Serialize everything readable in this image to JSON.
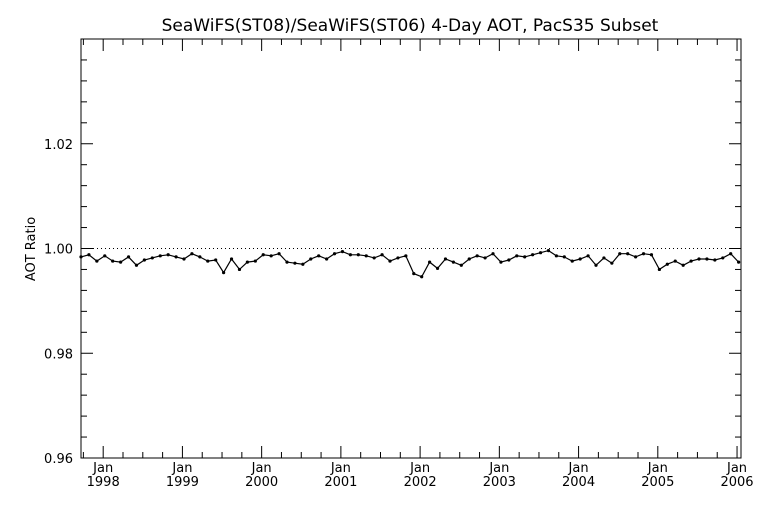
{
  "chart_data": {
    "type": "line",
    "title": "SeaWiFS(ST08)/SeaWiFS(ST06) 4-Day AOT, PacS35 Subset",
    "xlabel": "",
    "ylabel": "AOT Ratio",
    "xlim": [
      1997.72,
      2006.05
    ],
    "ylim": [
      0.96,
      1.04
    ],
    "yticks": [
      0.96,
      0.98,
      1.0,
      1.02
    ],
    "ytick_labels": [
      "0.96",
      "0.98",
      "1.00",
      "1.02"
    ],
    "xticks": [
      1998,
      1999,
      2000,
      2001,
      2002,
      2003,
      2004,
      2005,
      2006
    ],
    "xtick_labels_month": [
      "Jan",
      "Jan",
      "Jan",
      "Jan",
      "Jan",
      "Jan",
      "Jan",
      "Jan",
      "Jan"
    ],
    "xtick_labels_year": [
      "1998",
      "1999",
      "2000",
      "2001",
      "2002",
      "2003",
      "2004",
      "2005",
      "2006"
    ],
    "reference_line": 1.0,
    "grid": false,
    "series": [
      {
        "x": [
          1997.72,
          1997.82,
          1997.92,
          1998.02,
          1998.12,
          1998.22,
          1998.32,
          1998.42,
          1998.52,
          1998.62,
          1998.72,
          1998.82,
          1998.92,
          1999.02,
          1999.12,
          1999.22,
          1999.32,
          1999.42,
          1999.52,
          1999.62,
          1999.72,
          1999.82,
          1999.92,
          2000.02,
          2000.12,
          2000.22,
          2000.32,
          2000.42,
          2000.52,
          2000.62,
          2000.72,
          2000.82,
          2000.92,
          2001.02,
          2001.12,
          2001.22,
          2001.32,
          2001.42,
          2001.52,
          2001.62,
          2001.72,
          2001.82,
          2001.92,
          2002.02,
          2002.12,
          2002.22,
          2002.32,
          2002.42,
          2002.52,
          2002.62,
          2002.72,
          2002.82,
          2002.92,
          2003.02,
          2003.12,
          2003.22,
          2003.32,
          2003.42,
          2003.52,
          2003.62,
          2003.72,
          2003.82,
          2003.92,
          2004.02,
          2004.12,
          2004.22,
          2004.32,
          2004.42,
          2004.52,
          2004.62,
          2004.72,
          2004.82,
          2004.92,
          2005.02,
          2005.12,
          2005.22,
          2005.32,
          2005.42,
          2005.52,
          2005.62,
          2005.72,
          2005.82,
          2005.92,
          2006.02
        ],
        "values": [
          0.9984,
          0.9988,
          0.9976,
          0.9986,
          0.9976,
          0.9974,
          0.9984,
          0.9968,
          0.9978,
          0.9982,
          0.9986,
          0.9988,
          0.9984,
          0.998,
          0.999,
          0.9984,
          0.9976,
          0.9978,
          0.9954,
          0.998,
          0.996,
          0.9974,
          0.9976,
          0.9988,
          0.9986,
          0.999,
          0.9974,
          0.9972,
          0.997,
          0.998,
          0.9986,
          0.998,
          0.999,
          0.9994,
          0.9988,
          0.9988,
          0.9986,
          0.9982,
          0.9988,
          0.9976,
          0.9982,
          0.9986,
          0.9952,
          0.9946,
          0.9974,
          0.9962,
          0.998,
          0.9974,
          0.9968,
          0.998,
          0.9986,
          0.9982,
          0.999,
          0.9974,
          0.9978,
          0.9986,
          0.9984,
          0.9988,
          0.9992,
          0.9996,
          0.9986,
          0.9984,
          0.9976,
          0.998,
          0.9986,
          0.9968,
          0.9982,
          0.9972,
          0.999,
          0.999,
          0.9984,
          0.999,
          0.9988,
          0.996,
          0.997,
          0.9976,
          0.9968,
          0.9976,
          0.998,
          0.998,
          0.9978,
          0.9982,
          0.999,
          0.9974
        ]
      }
    ]
  }
}
